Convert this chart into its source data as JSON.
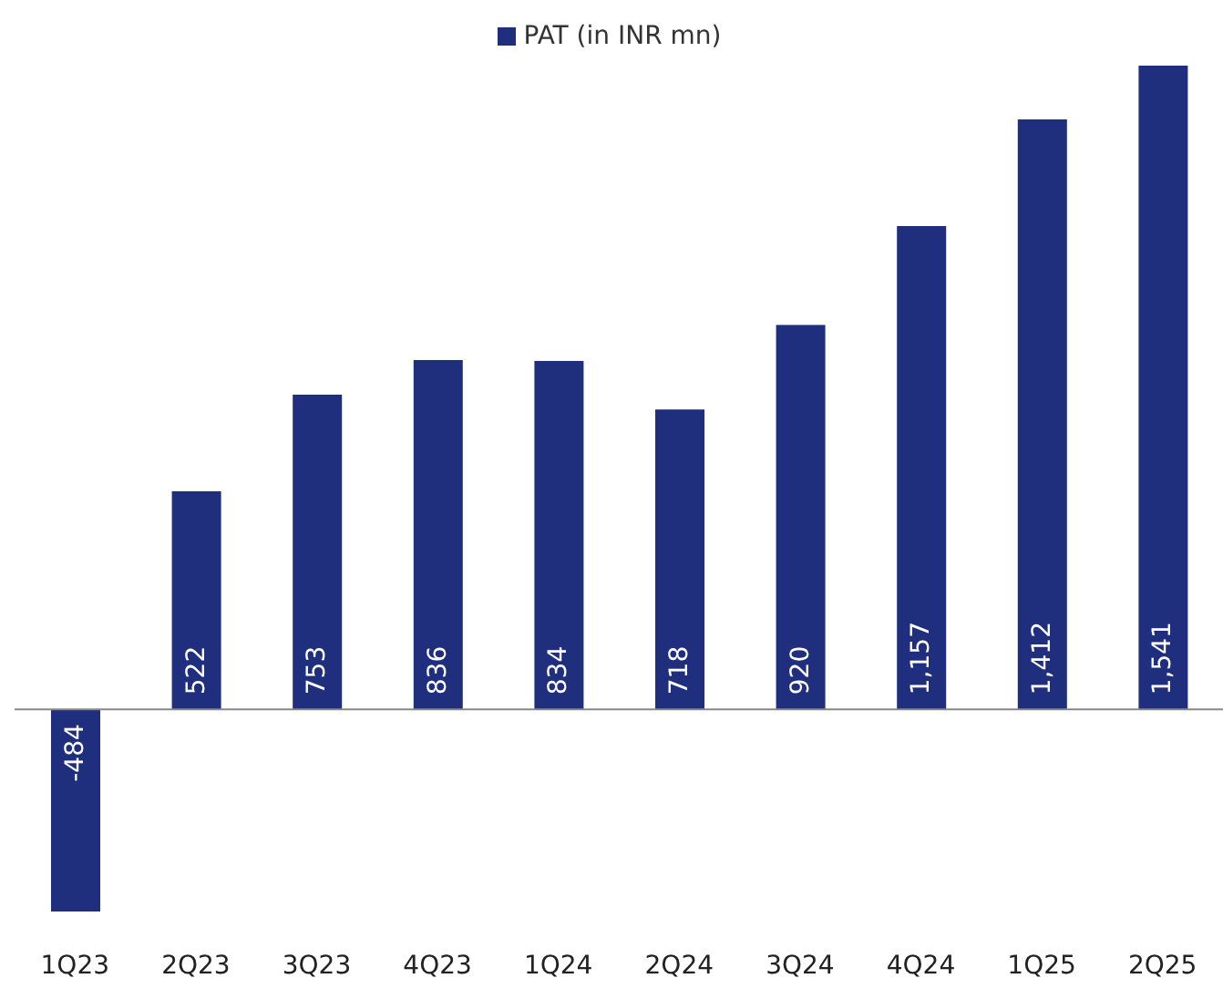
{
  "chart_data": {
    "type": "bar",
    "categories": [
      "1Q23",
      "2Q23",
      "3Q23",
      "4Q23",
      "1Q24",
      "2Q24",
      "3Q24",
      "4Q24",
      "1Q25",
      "2Q25"
    ],
    "series": [
      {
        "name": "PAT (in INR mn)",
        "color": "#1f2f7d",
        "values": [
          -484,
          522,
          753,
          836,
          834,
          718,
          920,
          1157,
          1412,
          1541
        ],
        "value_labels": [
          "-484",
          "522",
          "753",
          "836",
          "834",
          "718",
          "920",
          "1,157",
          "1,412",
          "1,541"
        ]
      }
    ],
    "legend": "top"
  }
}
